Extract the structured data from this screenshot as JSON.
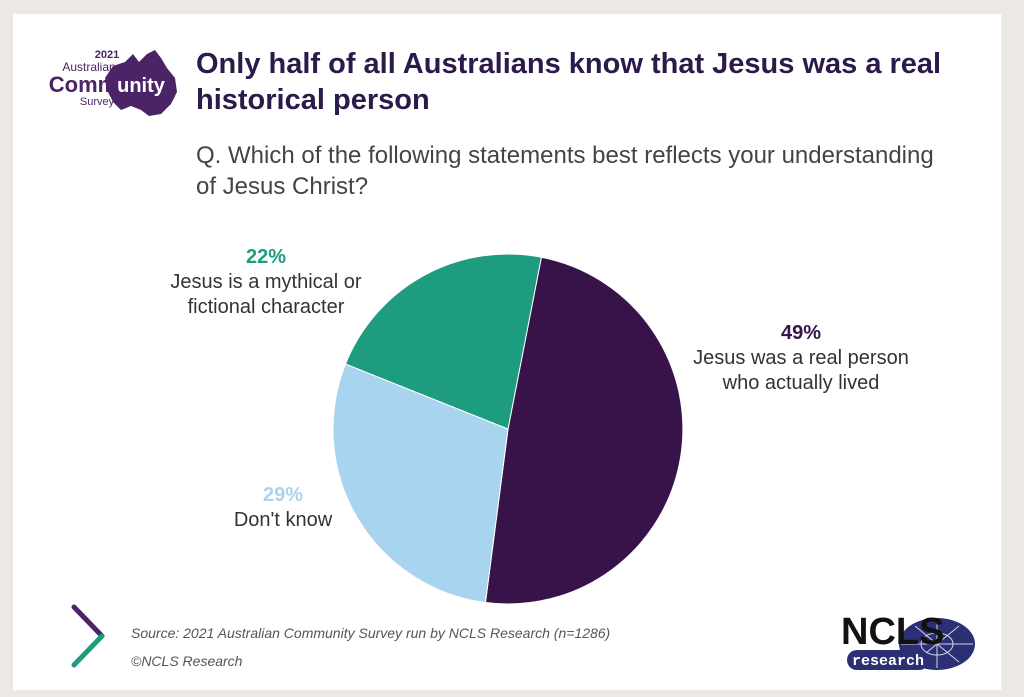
{
  "logo": {
    "year": "2021",
    "line1": "Australian",
    "line2a": "Comm",
    "line2b": "unity",
    "line3": "Survey",
    "icon": "australia-map-icon",
    "color": "#4a2466"
  },
  "header": {
    "title": "Only half of all Australians know that Jesus was a real historical person",
    "question": "Q. Which of the following statements best reflects your understanding of Jesus Christ?"
  },
  "chart_data": {
    "type": "pie",
    "slices": [
      {
        "key": "real",
        "pct": "49%",
        "value": 49,
        "label_line1": "Jesus was a real person",
        "label_line2": "who actually lived",
        "color": "#37134a"
      },
      {
        "key": "dontknow",
        "pct": "29%",
        "value": 29,
        "label_line1": "Don't know",
        "label_line2": "",
        "color": "#a9d4f0"
      },
      {
        "key": "myth",
        "pct": "22%",
        "value": 22,
        "label_line1": "Jesus is a mythical or",
        "label_line2": "fictional character",
        "color": "#1d9c80"
      }
    ],
    "start_angle_deg": 11,
    "direction": "clockwise"
  },
  "footer": {
    "source": "Source:  2021 Australian Community Survey run by NCLS Research (n=1286)",
    "copyright": "©NCLS Research",
    "brand": "NCLS",
    "brand_sub": "research",
    "chevron_icon": "chevron-right-icon",
    "brand_color": "#2b2f74"
  }
}
